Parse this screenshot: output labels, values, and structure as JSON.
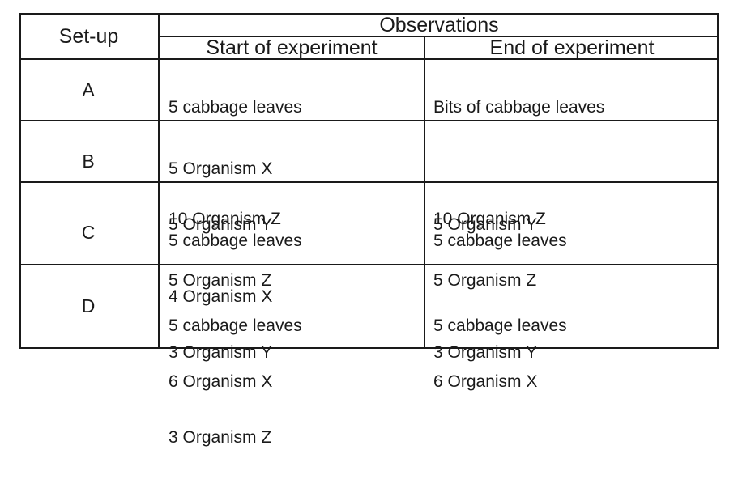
{
  "table": {
    "header": {
      "setup": "Set-up",
      "observations": "Observations",
      "start": "Start of experiment",
      "end": "End of experiment"
    },
    "rows": [
      {
        "label": "A",
        "start": [
          "5 cabbage leaves",
          "",
          "10 Organism Z"
        ],
        "end": [
          "Bits of cabbage leaves",
          "",
          "10 Organism Z"
        ]
      },
      {
        "label": "B",
        "start": [
          "5 Organism X",
          "5 Organism Y",
          "5 Organism Z"
        ],
        "end": [
          "",
          "5 Organism Y",
          "5 Organism Z"
        ]
      },
      {
        "label": "C",
        "start": [
          "5 cabbage leaves",
          "4 Organism X",
          "3 Organism Y"
        ],
        "end": [
          "5 cabbage leaves",
          "",
          "3 Organism Y"
        ]
      },
      {
        "label": "D",
        "start": [
          "5 cabbage leaves",
          "6 Organism X",
          "3 Organism Z"
        ],
        "end": [
          "5 cabbage leaves",
          "6 Organism X",
          ""
        ]
      }
    ]
  }
}
